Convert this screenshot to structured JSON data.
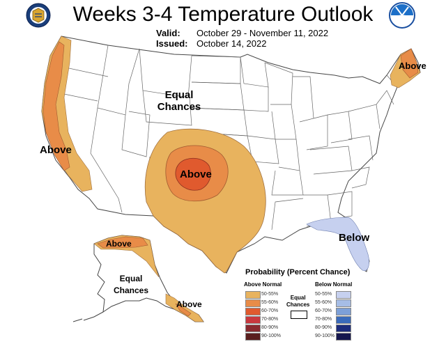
{
  "header": {
    "title": "Weeks 3-4 Temperature Outlook",
    "valid_label": "Valid:",
    "valid_value": "October 29 - November 11, 2022",
    "issued_label": "Issued:",
    "issued_value": "October 14, 2022",
    "left_logo": "doc-seal-icon",
    "right_logo": "noaa-logo-icon"
  },
  "map_labels": {
    "west_coast": "Above",
    "new_england": "Above",
    "central": "Above",
    "northwest_equal_line1": "Equal",
    "northwest_equal_line2": "Chances",
    "florida": "Below",
    "alaska_north": "Above",
    "alaska_equal_line1": "Equal",
    "alaska_equal_line2": "Chances",
    "alaska_panhandle": "Above"
  },
  "legend": {
    "title": "Probability (Percent Chance)",
    "above_header": "Above Normal",
    "below_header": "Below Normal",
    "equal_line1": "Equal",
    "equal_line2": "Chances",
    "above": [
      {
        "range": "50-55%",
        "color": "#e8b35e"
      },
      {
        "range": "55-60%",
        "color": "#e88c48"
      },
      {
        "range": "60-70%",
        "color": "#e05a2e"
      },
      {
        "range": "70-80%",
        "color": "#c9383e"
      },
      {
        "range": "80-90%",
        "color": "#8a2a2f"
      },
      {
        "range": "90-100%",
        "color": "#5a1e1e"
      }
    ],
    "below": [
      {
        "range": "50-55%",
        "color": "#c6d0ef"
      },
      {
        "range": "55-60%",
        "color": "#a6bde6"
      },
      {
        "range": "60-70%",
        "color": "#7da0d8"
      },
      {
        "range": "70-80%",
        "color": "#3a6bbb"
      },
      {
        "range": "80-90%",
        "color": "#1c2c7c"
      },
      {
        "range": "90-100%",
        "color": "#15174e"
      }
    ]
  }
}
